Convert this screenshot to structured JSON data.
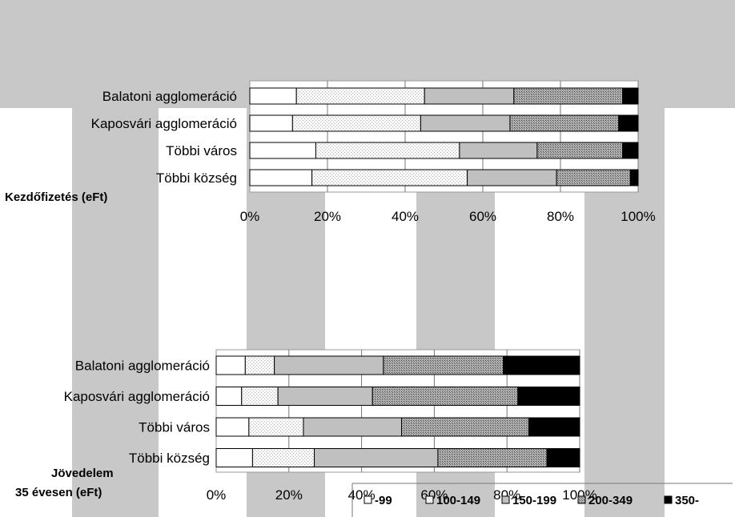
{
  "colors": {
    "background_band": "#c8c8c8",
    "seg_99": "#ffffff",
    "seg_100_149": "#efefef",
    "seg_150_199": "#c0c0c0",
    "seg_200_349": "#9a9a9a",
    "seg_350": "#000000"
  },
  "legend": {
    "entries": [
      "-99",
      "100-149",
      "150-199",
      "200-349",
      "350-"
    ],
    "placement": "bottom-right"
  },
  "chart_data": [
    {
      "type": "bar",
      "orientation": "horizontal",
      "stacked": "percent",
      "title": "Kezdőfizetés (eFt)",
      "categories": [
        "Balatoni agglomeráció",
        "Kaposvári agglomeráció",
        "Többi város",
        "Többi község"
      ],
      "x_ticks": [
        "0%",
        "20%",
        "40%",
        "60%",
        "80%",
        "100%"
      ],
      "xlim": [
        0,
        100
      ],
      "series": [
        {
          "name": "-99",
          "values": [
            12,
            11,
            17,
            16
          ]
        },
        {
          "name": "100-149",
          "values": [
            33,
            33,
            37,
            40
          ]
        },
        {
          "name": "150-199",
          "values": [
            23,
            23,
            20,
            23
          ]
        },
        {
          "name": "200-349",
          "values": [
            28,
            28,
            22,
            19
          ]
        },
        {
          "name": "350-",
          "values": [
            4,
            5,
            4,
            2
          ]
        }
      ]
    },
    {
      "type": "bar",
      "orientation": "horizontal",
      "stacked": "percent",
      "title": "Jövedelem 35 évesen (eFt)",
      "categories": [
        "Balatoni agglomeráció",
        "Kaposvári agglomeráció",
        "Többi város",
        "Többi község"
      ],
      "x_ticks": [
        "0%",
        "20%",
        "40%",
        "60%",
        "80%",
        "100%"
      ],
      "xlim": [
        0,
        100
      ],
      "series": [
        {
          "name": "-99",
          "values": [
            8,
            7,
            9,
            10
          ]
        },
        {
          "name": "100-149",
          "values": [
            8,
            10,
            15,
            17
          ]
        },
        {
          "name": "150-199",
          "values": [
            30,
            26,
            27,
            34
          ]
        },
        {
          "name": "200-349",
          "values": [
            33,
            40,
            35,
            30
          ]
        },
        {
          "name": "350-",
          "values": [
            21,
            17,
            14,
            9
          ]
        }
      ]
    }
  ]
}
